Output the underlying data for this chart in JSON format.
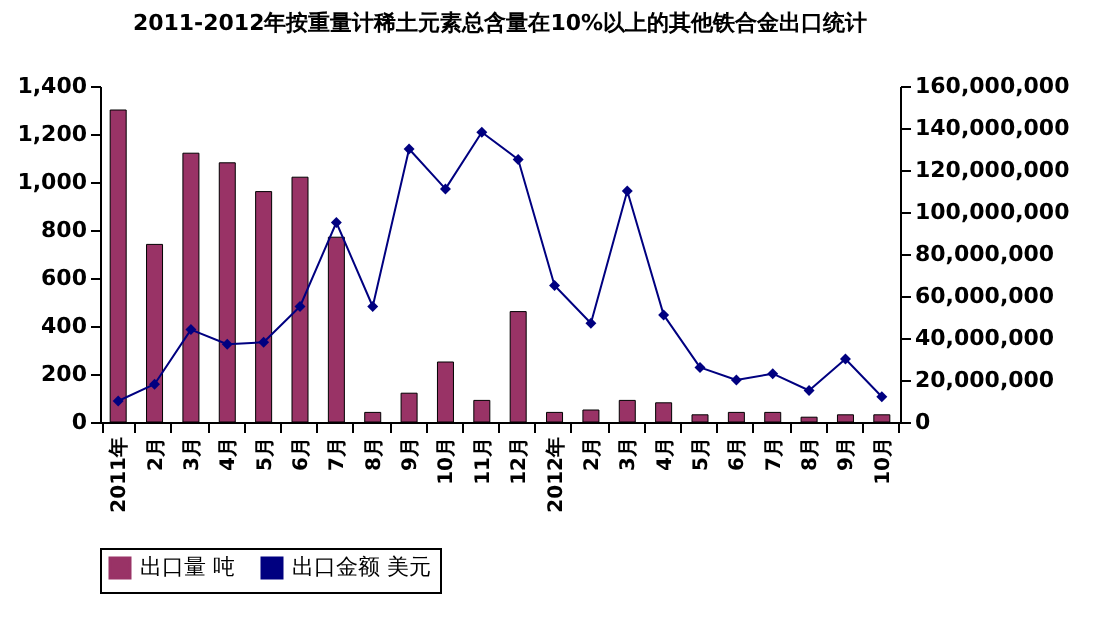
{
  "chart_data": {
    "type": "bar",
    "title": "2011-2012年按重量计稀土元素总含量在10%以上的其他铁合金出口统计",
    "categories": [
      "2011年",
      "2月",
      "3月",
      "4月",
      "5月",
      "6月",
      "7月",
      "8月",
      "9月",
      "10月",
      "11月",
      "12月",
      "2012年",
      "2月",
      "3月",
      "4月",
      "5月",
      "6月",
      "7月",
      "8月",
      "9月",
      "10月"
    ],
    "series": [
      {
        "name": "出口量 吨",
        "color": "#993366",
        "values": [
          1300,
          740,
          1120,
          1080,
          960,
          1020,
          770,
          40,
          120,
          250,
          90,
          460,
          40,
          50,
          90,
          80,
          30,
          40,
          40,
          20,
          30,
          30
        ]
      },
      {
        "name": "出口金额 美元",
        "type": "line",
        "axis": "y2",
        "color": "#000080",
        "marker": "diamond",
        "values": [
          10000000,
          18000000,
          44000000,
          37000000,
          38000000,
          55000000,
          95000000,
          55000000,
          130000000,
          111000000,
          138000000,
          125000000,
          65000000,
          47000000,
          110000000,
          51000000,
          26000000,
          20000000,
          23000000,
          15000000,
          30000000,
          12000000
        ]
      }
    ],
    "ylim": [
      0,
      1400
    ],
    "yticks": [
      0,
      200,
      400,
      600,
      800,
      {
        "value": 1000,
        "label": "1,000"
      },
      {
        "value": 1200,
        "label": "1,200"
      },
      {
        "value": 1400,
        "label": "1,400"
      }
    ],
    "y2lim": [
      0,
      160000000
    ],
    "y2ticks": [
      0,
      {
        "value": 20000000,
        "label": "20,000,000"
      },
      {
        "value": 40000000,
        "label": "40,000,000"
      },
      {
        "value": 60000000,
        "label": "60,000,000"
      },
      {
        "value": 80000000,
        "label": "80,000,000"
      },
      {
        "value": 100000000,
        "label": "100,000,000"
      },
      {
        "value": 120000000,
        "label": "120,000,000"
      },
      {
        "value": 140000000,
        "label": "140,000,000"
      },
      {
        "value": 160000000,
        "label": "160,000,000"
      }
    ],
    "grid": false,
    "legend": "bottom"
  }
}
